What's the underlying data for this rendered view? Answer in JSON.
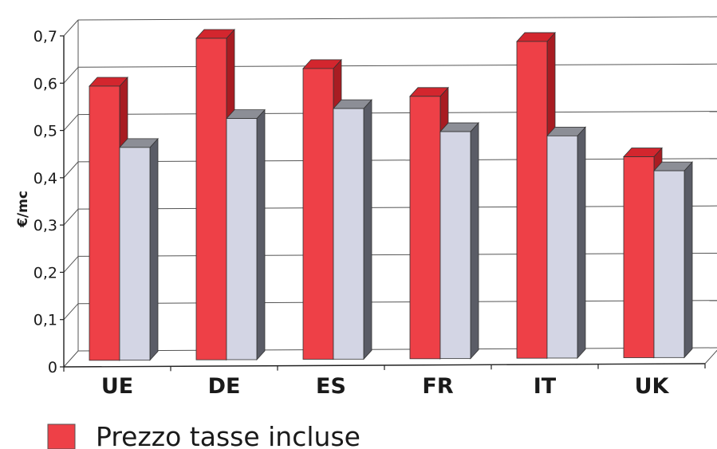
{
  "chart_data": {
    "type": "bar",
    "ylabel": "€/mc",
    "ylim": [
      0,
      0.7
    ],
    "y_ticks": [
      "0",
      "0,1",
      "0,2",
      "0,3",
      "0,4",
      "0,5",
      "0,6",
      "0,7"
    ],
    "categories": [
      "UE",
      "DE",
      "ES",
      "FR",
      "IT",
      "UK"
    ],
    "grid": true,
    "series": [
      {
        "name": "Prezzo tasse incluse",
        "color": "#ee4047",
        "values": [
          0.58,
          0.68,
          0.615,
          0.555,
          0.67,
          0.425
        ]
      },
      {
        "name": "",
        "color": "#d3d5e4",
        "values": [
          0.45,
          0.51,
          0.53,
          0.48,
          0.47,
          0.395
        ]
      }
    ],
    "legend": {
      "position": "bottom-left",
      "entries": [
        "Prezzo tasse incluse"
      ]
    }
  }
}
